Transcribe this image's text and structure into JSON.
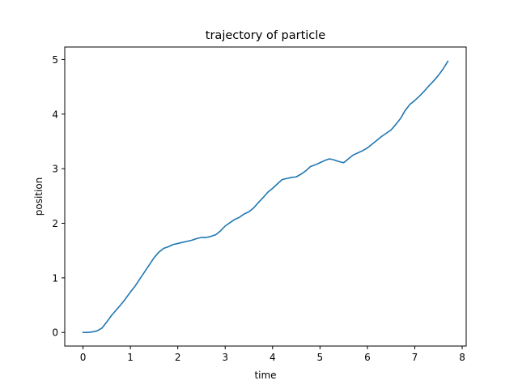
{
  "chart_data": {
    "type": "line",
    "title": "trajectory of particle",
    "xlabel": "time",
    "ylabel": "position",
    "xlim": [
      -0.385,
      8.085
    ],
    "ylim": [
      -0.249,
      5.229
    ],
    "xticks": [
      0,
      1,
      2,
      3,
      4,
      5,
      6,
      7,
      8
    ],
    "yticks": [
      0,
      1,
      2,
      3,
      4,
      5
    ],
    "grid": false,
    "legend": "none",
    "series": [
      {
        "color": "#1f77b4",
        "x": [
          0.0,
          0.1,
          0.2,
          0.3,
          0.4,
          0.5,
          0.6,
          0.7,
          0.8,
          0.9,
          1.0,
          1.1,
          1.2,
          1.3,
          1.4,
          1.5,
          1.6,
          1.7,
          1.8,
          1.9,
          2.0,
          2.1,
          2.2,
          2.3,
          2.4,
          2.5,
          2.6,
          2.7,
          2.8,
          2.9,
          3.0,
          3.1,
          3.2,
          3.3,
          3.4,
          3.5,
          3.6,
          3.7,
          3.8,
          3.9,
          4.0,
          4.1,
          4.2,
          4.3,
          4.4,
          4.5,
          4.6,
          4.7,
          4.8,
          4.9,
          5.0,
          5.1,
          5.2,
          5.3,
          5.4,
          5.5,
          5.6,
          5.7,
          5.8,
          5.9,
          6.0,
          6.1,
          6.2,
          6.3,
          6.4,
          6.5,
          6.6,
          6.7,
          6.8,
          6.9,
          7.0,
          7.1,
          7.2,
          7.3,
          7.4,
          7.5,
          7.6,
          7.7
        ],
        "y": [
          0.0,
          0.0,
          0.01,
          0.03,
          0.08,
          0.19,
          0.31,
          0.41,
          0.51,
          0.62,
          0.74,
          0.85,
          0.98,
          1.11,
          1.24,
          1.37,
          1.47,
          1.54,
          1.57,
          1.61,
          1.63,
          1.65,
          1.67,
          1.69,
          1.72,
          1.74,
          1.74,
          1.76,
          1.79,
          1.86,
          1.95,
          2.01,
          2.07,
          2.11,
          2.17,
          2.21,
          2.28,
          2.38,
          2.47,
          2.57,
          2.64,
          2.72,
          2.8,
          2.82,
          2.84,
          2.85,
          2.9,
          2.96,
          3.04,
          3.07,
          3.11,
          3.15,
          3.18,
          3.16,
          3.13,
          3.11,
          3.18,
          3.25,
          3.29,
          3.33,
          3.38,
          3.45,
          3.52,
          3.59,
          3.65,
          3.71,
          3.81,
          3.92,
          4.07,
          4.18,
          4.25,
          4.33,
          4.42,
          4.52,
          4.61,
          4.71,
          4.83,
          4.97
        ]
      }
    ]
  }
}
